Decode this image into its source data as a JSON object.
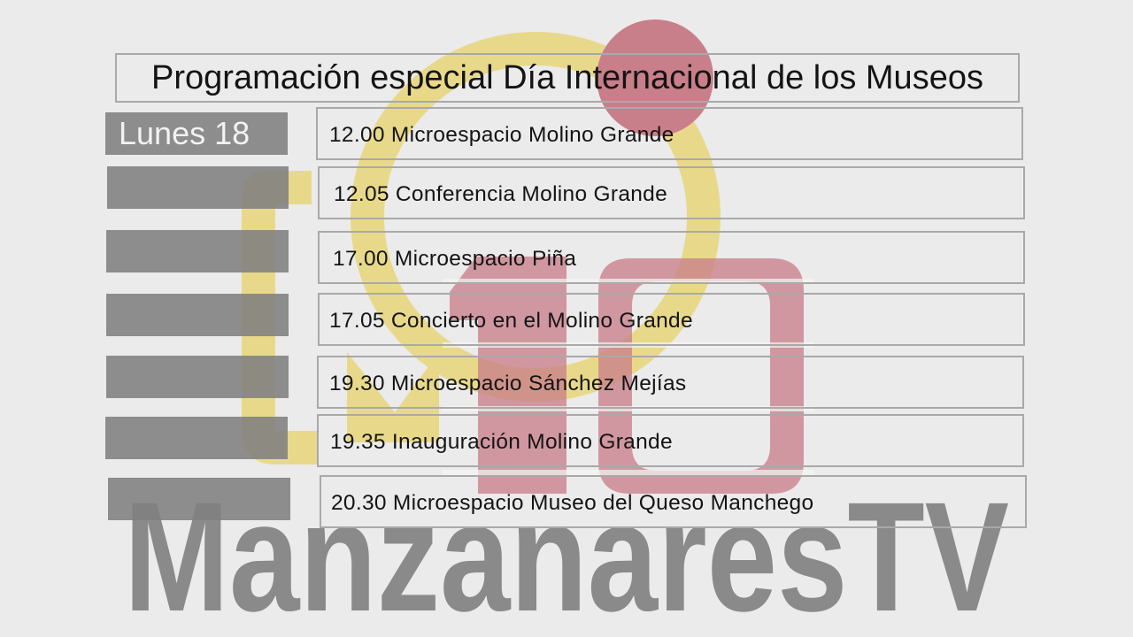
{
  "brand": {
    "name": "ManzanaresTV",
    "number": "10",
    "colors": {
      "yellow": "#e8d98a",
      "red": "#c97f8a",
      "gray": "#8a8a8a"
    }
  },
  "schedule": {
    "title": "Programación especial Día Internacional de los Museos",
    "day_label": "Lunes 18",
    "events": [
      "12.00 Microespacio Molino Grande",
      "12.05 Conferencia Molino Grande",
      "17.00 Microespacio Piña",
      "17.05 Concierto en el Molino Grande",
      "19.30 Microespacio Sánchez Mejías",
      "19.35 Inauguración Molino Grande",
      "20.30 Microespacio Museo del Queso Manchego"
    ]
  }
}
